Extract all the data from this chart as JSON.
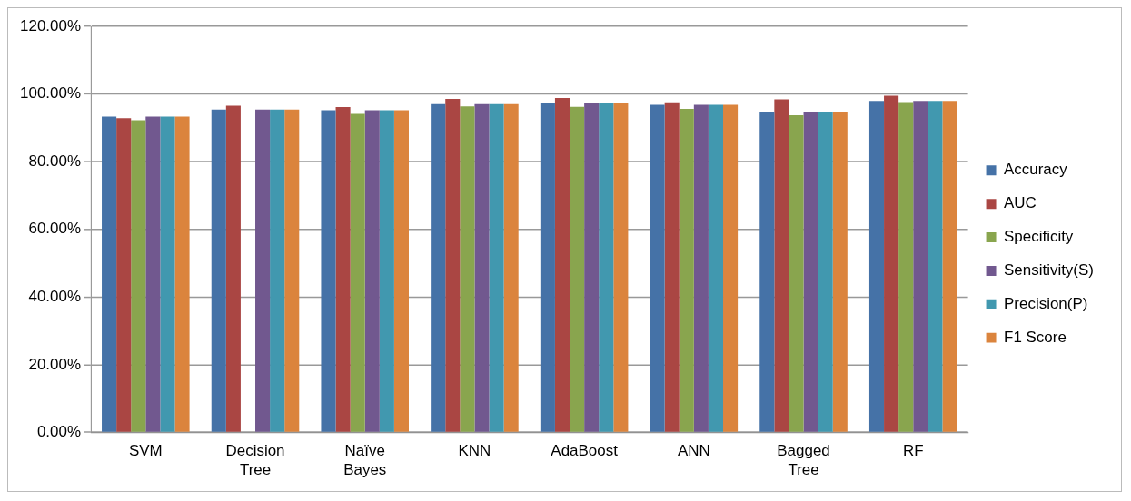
{
  "chart_data": {
    "type": "bar",
    "categories": [
      "SVM",
      "Decision Tree",
      "Naïve Bayes",
      "KNN",
      "AdaBoost",
      "ANN",
      "Bagged Tree",
      "RF"
    ],
    "series": [
      {
        "name": "Accuracy",
        "color": "#4572a7",
        "values": [
          93.3,
          95.4,
          95.2,
          97.0,
          97.3,
          96.8,
          94.8,
          97.9
        ]
      },
      {
        "name": "AUC",
        "color": "#aa4643",
        "values": [
          92.8,
          96.5,
          96.1,
          98.5,
          98.8,
          97.5,
          98.4,
          99.5
        ]
      },
      {
        "name": "Specificity",
        "color": "#89a54e",
        "values": [
          92.2,
          null,
          94.1,
          96.3,
          96.2,
          95.6,
          93.7,
          97.6
        ]
      },
      {
        "name": "Sensitivity(S)",
        "color": "#71588f",
        "values": [
          93.3,
          95.4,
          95.2,
          97.0,
          97.3,
          96.8,
          94.8,
          97.9
        ]
      },
      {
        "name": "Precision(P)",
        "color": "#4198af",
        "values": [
          93.3,
          95.4,
          95.2,
          97.0,
          97.3,
          96.8,
          94.8,
          97.9
        ]
      },
      {
        "name": "F1 Score",
        "color": "#db843d",
        "values": [
          93.3,
          95.4,
          95.2,
          97.0,
          97.3,
          96.8,
          94.8,
          97.9
        ]
      }
    ],
    "ylim": [
      0,
      120
    ],
    "yticks": [
      {
        "value": 0,
        "label": "0.00%"
      },
      {
        "value": 20,
        "label": "20.00%"
      },
      {
        "value": 40,
        "label": "40.00%"
      },
      {
        "value": 60,
        "label": "60.00%"
      },
      {
        "value": 80,
        "label": "80.00%"
      },
      {
        "value": 100,
        "label": "100.00%"
      },
      {
        "value": 120,
        "label": "120.00%"
      }
    ],
    "grid": "y",
    "legend": "right"
  }
}
